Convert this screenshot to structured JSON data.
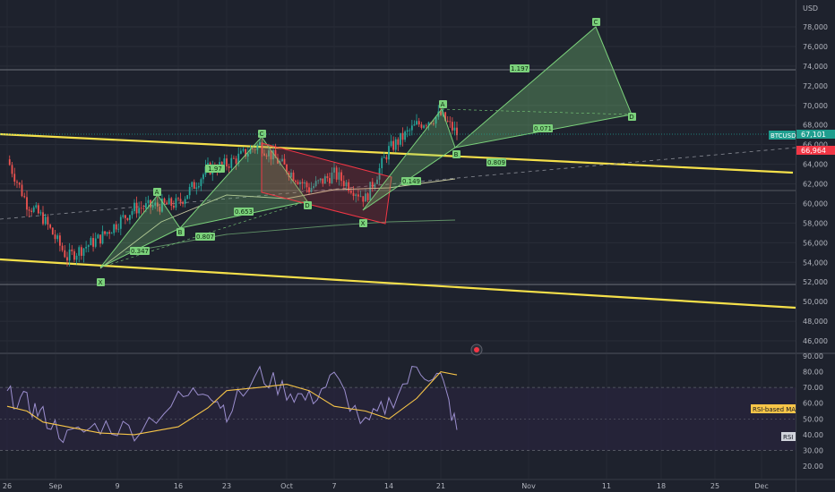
{
  "currency_label": "USD",
  "price_tags": [
    {
      "ticker": "BTCUSD",
      "value": "67,101",
      "bg": "#1f9e8f"
    },
    {
      "value": "66,964",
      "bg": "#f23645"
    }
  ],
  "rsi_tags": [
    {
      "label": "RSI-based MA",
      "bg": "#f7c548",
      "fg": "#131722"
    },
    {
      "label": "RSI",
      "bg": "#d1d4dc",
      "fg": "#131722"
    }
  ],
  "colors": {
    "background": "#1e222d",
    "trendline": "#f5e04a",
    "pattern_green": "#7bd17b",
    "pattern_red": "#f23645",
    "rsi_line": "#9c8fcf",
    "rsi_ma": "#f7c548",
    "rsi_band": "#2a2540"
  },
  "chart_data": [
    {
      "type": "candlestick",
      "title": "",
      "y_axis": {
        "ticks": [
          "78,000",
          "76,000",
          "74,000",
          "72,000",
          "70,000",
          "68,000",
          "66,000",
          "64,000",
          "62,000",
          "60,000",
          "58,000",
          "56,000",
          "54,000",
          "52,000",
          "50,000",
          "48,000",
          "46,000"
        ],
        "range": [
          45000,
          80500
        ]
      },
      "x_axis": {
        "ticks": [
          "26",
          "Sep",
          "9",
          "16",
          "23",
          "Oct",
          "7",
          "14",
          "21",
          "Nov",
          "11",
          "18",
          "25",
          "Dec"
        ]
      },
      "price_series": {
        "dates": [
          "Aug 26",
          "Aug 31",
          "Sep 3",
          "Sep 6",
          "Sep 9",
          "Sep 12",
          "Sep 16",
          "Sep 20",
          "Sep 23",
          "Sep 27",
          "Sep 30",
          "Oct 3",
          "Oct 7",
          "Oct 10",
          "Oct 14",
          "Oct 17",
          "Oct 21",
          "Oct 23"
        ],
        "close": [
          64500,
          60000,
          58500,
          54500,
          56500,
          59500,
          60000,
          63500,
          64000,
          66000,
          63500,
          61500,
          63000,
          60500,
          65500,
          68000,
          69000,
          67101
        ]
      },
      "harmonic_patterns": [
        {
          "color": "green",
          "points": {
            "X": 53000,
            "A": 61000,
            "B": 58000,
            "C": 66500,
            "D": 61500
          },
          "ratios": [
            "0.347",
            "0.807",
            "1.97",
            "0.653"
          ]
        },
        {
          "color": "red",
          "points": {
            "C": 66500,
            "D": 60500,
            "X": 58500
          }
        },
        {
          "color": "green",
          "points": {
            "A": 69500,
            "B": 65500,
            "C": 78000,
            "D": 68500
          },
          "ratios": [
            "0.149",
            "0.809",
            "1.197",
            "0.071"
          ]
        }
      ],
      "trendlines": [
        "descending channel upper",
        "descending channel lower"
      ],
      "horizontal_levels": [
        73800,
        61400,
        51800
      ]
    },
    {
      "type": "line",
      "title": "",
      "y_axis": {
        "ticks": [
          "90.00",
          "80.00",
          "70.00",
          "60.00",
          "50.00",
          "40.00",
          "30.00",
          "20.00"
        ],
        "range": [
          15,
          92
        ]
      },
      "band": [
        30,
        70
      ],
      "series": [
        {
          "name": "RSI",
          "values": [
            65,
            60,
            52,
            38,
            46,
            43,
            62,
            70,
            55,
            78,
            68,
            62,
            76,
            45,
            60,
            82,
            76,
            43
          ]
        },
        {
          "name": "RSI-based MA",
          "values": [
            58,
            55,
            48,
            45,
            41,
            40,
            45,
            57,
            68,
            70,
            72,
            68,
            58,
            55,
            50,
            63,
            80,
            78
          ]
        }
      ]
    }
  ]
}
